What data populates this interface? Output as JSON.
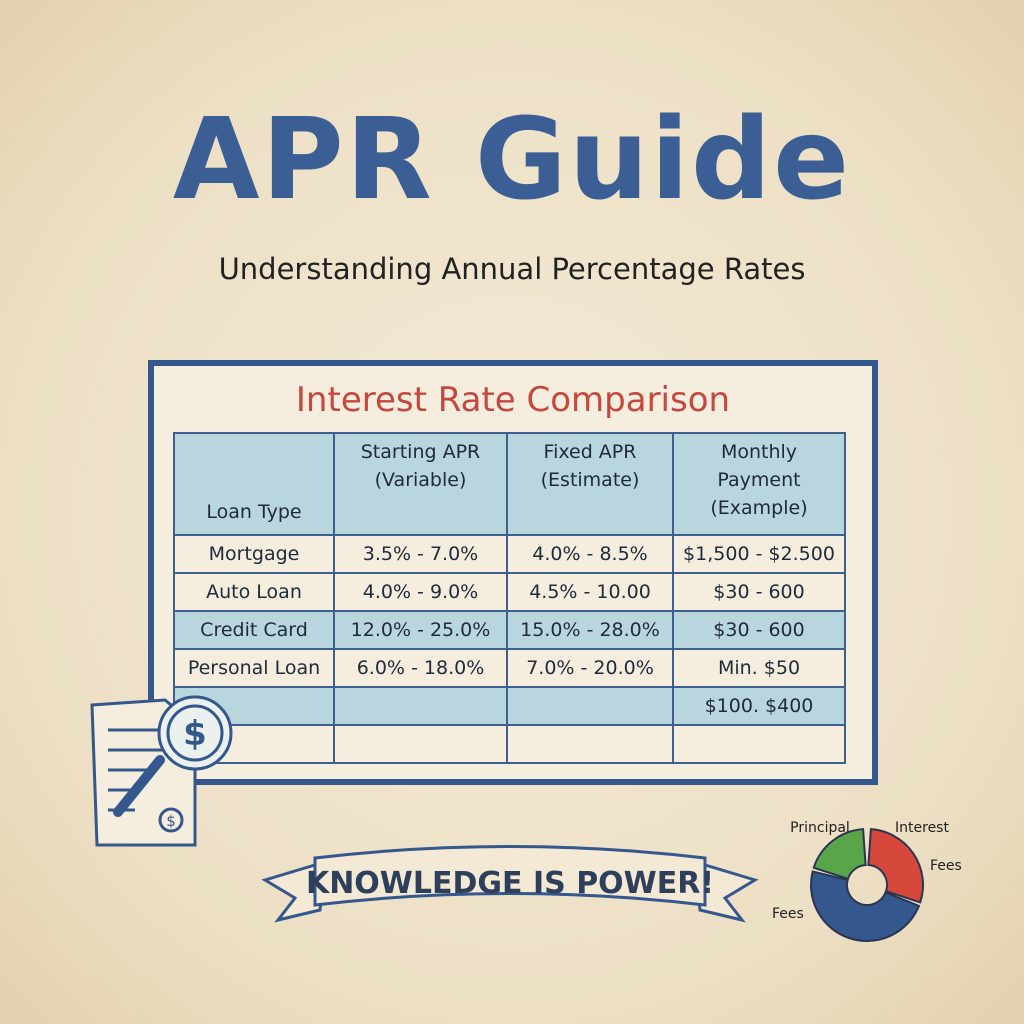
{
  "header": {
    "title": "APR Guide",
    "subtitle": "Understanding Annual Percentage Rates"
  },
  "table": {
    "title": "Interest Rate Comparison",
    "columns": [
      "Loan Type",
      "Starting APR (Variable)",
      "Fixed APR (Estimate)",
      "Monthly Payment (Example)"
    ],
    "rows": [
      [
        "Mortgage",
        "3.5% - 7.0%",
        "4.0% - 8.5%",
        "$1,500 - $2.500"
      ],
      [
        "Auto Loan",
        "4.0% - 9.0%",
        "4.5% - 10.00",
        "$30 - 600"
      ],
      [
        "Credit Card",
        "12.0% - 25.0%",
        "15.0% - 28.0%",
        "$30  - 600"
      ],
      [
        "Personal Loan",
        "6.0% - 18.0%",
        "7.0% - 20.0%",
        "Min. $50"
      ],
      [
        null,
        null,
        null,
        "$100. $400"
      ],
      [
        null,
        null,
        null,
        null
      ]
    ]
  },
  "banner": "KNOWLEDGE IS POWER!",
  "donut": {
    "labels": [
      "Principal",
      "Interest",
      "Fees",
      "Fees"
    ]
  }
}
